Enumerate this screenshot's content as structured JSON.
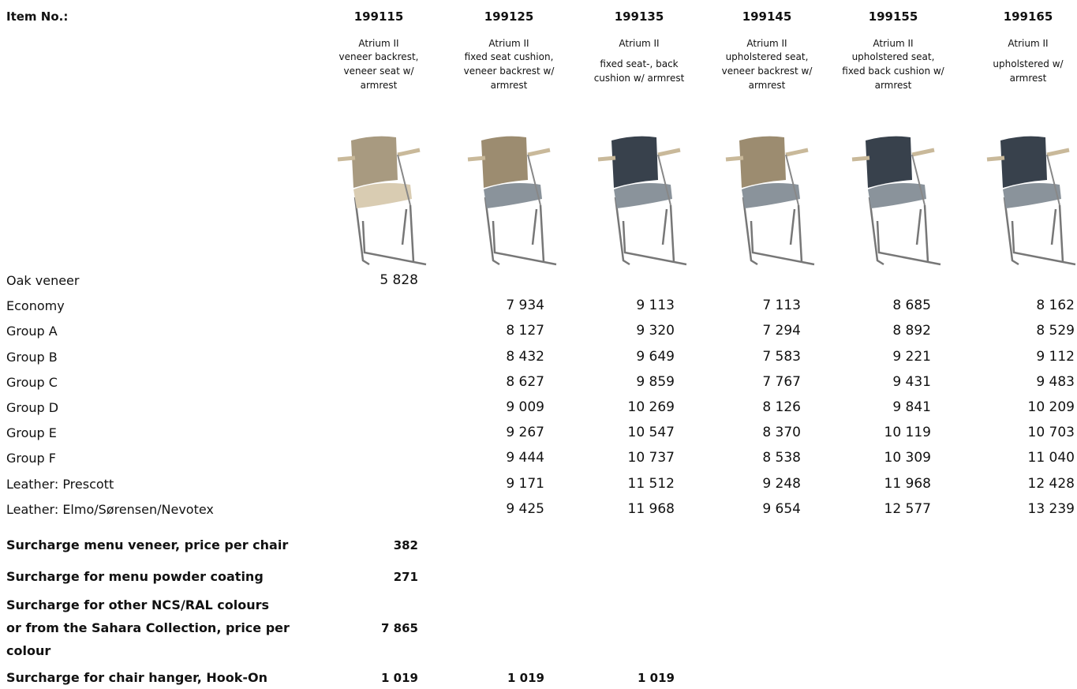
{
  "header": {
    "label": "Item No.:",
    "items": [
      {
        "number": "199115",
        "name": "Atrium II",
        "description": [
          "veneer backrest,",
          "veneer seat w/",
          "armrest"
        ]
      },
      {
        "number": "199125",
        "name": "Atrium II",
        "description": [
          "fixed seat cushion,",
          "veneer backrest w/",
          "armrest"
        ]
      },
      {
        "number": "199135",
        "name": "Atrium II",
        "description": [
          "fixed seat-, back",
          "cushion w/ armrest"
        ]
      },
      {
        "number": "199145",
        "name": "Atrium II",
        "description": [
          "upholstered seat,",
          "veneer backrest w/",
          "armrest"
        ]
      },
      {
        "number": "199155",
        "name": "Atrium II",
        "description": [
          "upholstered seat,",
          "fixed back cushion w/",
          "armrest"
        ]
      },
      {
        "number": "199165",
        "name": "Atrium II",
        "description": [
          "upholstered w/",
          "armrest"
        ]
      }
    ]
  },
  "rows": [
    {
      "label": "Oak veneer",
      "values": [
        "5 828",
        null,
        null,
        null,
        null,
        null
      ]
    },
    {
      "label": "Economy",
      "values": [
        null,
        "7 934",
        "9 113",
        "7 113",
        "8 685",
        "8 162"
      ]
    },
    {
      "label": "Group A",
      "values": [
        null,
        "8 127",
        "9 320",
        "7 294",
        "8 892",
        "8 529"
      ]
    },
    {
      "label": "Group B",
      "values": [
        null,
        "8 432",
        "9 649",
        "7 583",
        "9 221",
        "9 112"
      ]
    },
    {
      "label": "Group C",
      "values": [
        null,
        "8 627",
        "9 859",
        "7 767",
        "9 431",
        "9 483"
      ]
    },
    {
      "label": "Group D",
      "values": [
        null,
        "9 009",
        "10 269",
        "8 126",
        "9 841",
        "10 209"
      ]
    },
    {
      "label": "Group E",
      "values": [
        null,
        "9 267",
        "10 547",
        "8 370",
        "10 119",
        "10 703"
      ]
    },
    {
      "label": "Group F",
      "values": [
        null,
        "9 444",
        "10 737",
        "8 538",
        "10 309",
        "11 040"
      ]
    },
    {
      "label": "Leather: Prescott",
      "values": [
        null,
        "9 171",
        "11 512",
        "9 248",
        "11 968",
        "12 428"
      ]
    },
    {
      "label": "Leather: Elmo/Sørensen/Nevotex",
      "values": [
        null,
        "9 425",
        "11 968",
        "9 654",
        "12 577",
        "13 239"
      ]
    }
  ],
  "surcharges": [
    {
      "label": [
        "Surcharge menu veneer, price per chair"
      ],
      "values": [
        "382",
        null,
        null
      ]
    },
    {
      "label": [
        "Surcharge for menu powder coating"
      ],
      "values": [
        "271",
        null,
        null
      ]
    },
    {
      "label": [
        "Surcharge for other NCS/RAL colours",
        "or from the Sahara Collection, price per",
        "colour"
      ],
      "values": [
        "7 865",
        null,
        null
      ]
    },
    {
      "label": [
        "Surcharge for chair hanger, Hook-On"
      ],
      "values": [
        "1 019",
        "1 019",
        "1 019"
      ]
    }
  ]
}
